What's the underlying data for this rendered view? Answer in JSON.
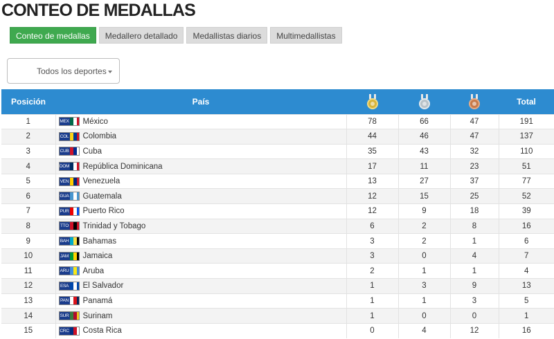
{
  "page": {
    "title": "CONTEO DE MEDALLAS"
  },
  "tabs": [
    {
      "label": "Conteo de medallas",
      "active": true
    },
    {
      "label": "Medallero detallado",
      "active": false
    },
    {
      "label": "Medallistas diarios",
      "active": false
    },
    {
      "label": "Multimedallistas",
      "active": false
    }
  ],
  "filter": {
    "selected": "Todos los deportes"
  },
  "colors": {
    "header_bg": "#2d8bd0",
    "active_tab": "#3fa94f",
    "gold": "#d8b43a",
    "silver": "#b8c2c8",
    "bronze": "#c87a4a"
  },
  "table": {
    "headers": {
      "position": "Posición",
      "country": "País",
      "gold_icon": "gold-medal-icon",
      "silver_icon": "silver-medal-icon",
      "bronze_icon": "bronze-medal-icon",
      "total": "Total"
    },
    "rows": [
      {
        "pos": "1",
        "code": "MEX",
        "country": "México",
        "gold": "78",
        "silver": "66",
        "bronze": "47",
        "total": "191",
        "flag": [
          "#006847",
          "#ffffff",
          "#ce1126"
        ]
      },
      {
        "pos": "2",
        "code": "COL",
        "country": "Colombia",
        "gold": "44",
        "silver": "46",
        "bronze": "47",
        "total": "137",
        "flag": [
          "#fcd116",
          "#003893",
          "#ce1126"
        ]
      },
      {
        "pos": "3",
        "code": "CUB",
        "country": "Cuba",
        "gold": "35",
        "silver": "43",
        "bronze": "32",
        "total": "110",
        "flag": [
          "#cf142b",
          "#002a8f",
          "#ffffff"
        ]
      },
      {
        "pos": "4",
        "code": "DOM",
        "country": "República Dominicana",
        "gold": "17",
        "silver": "11",
        "bronze": "23",
        "total": "51",
        "flag": [
          "#002d62",
          "#ffffff",
          "#ce1126"
        ]
      },
      {
        "pos": "5",
        "code": "VEN",
        "country": "Venezuela",
        "gold": "13",
        "silver": "27",
        "bronze": "37",
        "total": "77",
        "flag": [
          "#ffcc00",
          "#00247d",
          "#cf142b"
        ]
      },
      {
        "pos": "6",
        "code": "GUA",
        "country": "Guatemala",
        "gold": "12",
        "silver": "15",
        "bronze": "25",
        "total": "52",
        "flag": [
          "#4997d0",
          "#ffffff",
          "#4997d0"
        ]
      },
      {
        "pos": "7",
        "code": "PUR",
        "country": "Puerto Rico",
        "gold": "12",
        "silver": "9",
        "bronze": "18",
        "total": "39",
        "flag": [
          "#ed0000",
          "#ffffff",
          "#0050f0"
        ]
      },
      {
        "pos": "8",
        "code": "TTO",
        "country": "Trinidad y Tobago",
        "gold": "6",
        "silver": "2",
        "bronze": "8",
        "total": "16",
        "flag": [
          "#ce1126",
          "#000000",
          "#ce1126"
        ]
      },
      {
        "pos": "9",
        "code": "BAH",
        "country": "Bahamas",
        "gold": "3",
        "silver": "2",
        "bronze": "1",
        "total": "6",
        "flag": [
          "#00abc9",
          "#fae042",
          "#000000"
        ]
      },
      {
        "pos": "10",
        "code": "JAM",
        "country": "Jamaica",
        "gold": "3",
        "silver": "0",
        "bronze": "4",
        "total": "7",
        "flag": [
          "#009b3a",
          "#fed100",
          "#000000"
        ]
      },
      {
        "pos": "11",
        "code": "ARU",
        "country": "Aruba",
        "gold": "2",
        "silver": "1",
        "bronze": "1",
        "total": "4",
        "flag": [
          "#418fde",
          "#f9e814",
          "#418fde"
        ]
      },
      {
        "pos": "12",
        "code": "ESA",
        "country": "El Salvador",
        "gold": "1",
        "silver": "3",
        "bronze": "9",
        "total": "13",
        "flag": [
          "#0047ab",
          "#ffffff",
          "#0047ab"
        ]
      },
      {
        "pos": "13",
        "code": "PAN",
        "country": "Panamá",
        "gold": "1",
        "silver": "1",
        "bronze": "3",
        "total": "5",
        "flag": [
          "#ffffff",
          "#da121a",
          "#072357"
        ]
      },
      {
        "pos": "14",
        "code": "SUR",
        "country": "Surinam",
        "gold": "1",
        "silver": "0",
        "bronze": "0",
        "total": "1",
        "flag": [
          "#377e3f",
          "#b40a2d",
          "#ecc81d"
        ]
      },
      {
        "pos": "15",
        "code": "CRC",
        "country": "Costa Rica",
        "gold": "0",
        "silver": "4",
        "bronze": "12",
        "total": "16",
        "flag": [
          "#002b7f",
          "#ce1126",
          "#ffffff"
        ]
      }
    ]
  }
}
